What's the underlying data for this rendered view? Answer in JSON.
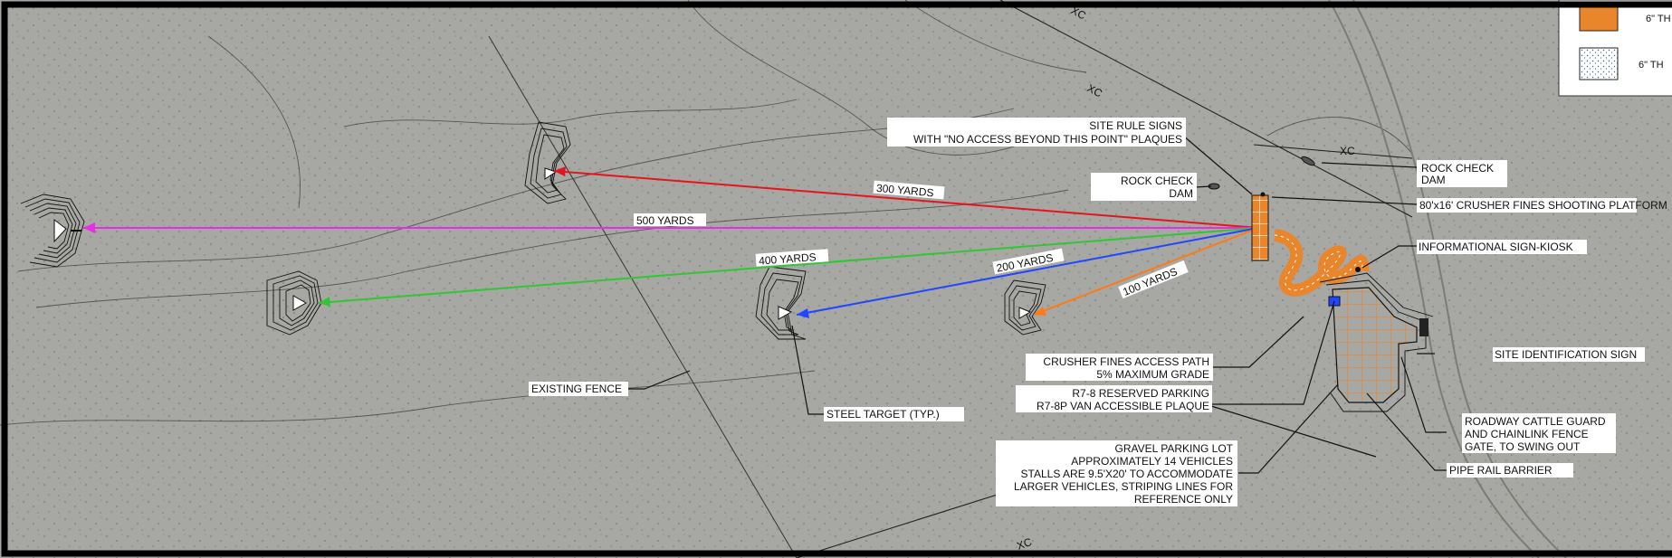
{
  "colors": {
    "ground": "#a7a7a3",
    "line_300": "#e3161d",
    "line_500": "#e62ee6",
    "line_400": "#31c633",
    "line_200": "#2146ff",
    "line_100": "#ff7a14",
    "platform": "#e9862b",
    "frame": "#000000"
  },
  "icons": {
    "target": "berm-contour-symbol",
    "dam": "rock-check-dam-symbol",
    "platform": "crusher-fines-hatch",
    "legend_gravel": "stipple-swatch"
  },
  "fence_marker": "XC",
  "distances": {
    "d300": "300 YARDS",
    "d500": "500 YARDS",
    "d400": "400 YARDS",
    "d200": "200 YARDS",
    "d100": "100 YARDS"
  },
  "callouts": {
    "site_rule_signs": [
      "SITE RULE SIGNS",
      "WITH \"NO ACCESS BEYOND THIS POINT\" PLAQUES"
    ],
    "rock_check_dam_left": [
      "ROCK CHECK",
      "DAM"
    ],
    "rock_check_dam_right": [
      "ROCK CHECK",
      "DAM"
    ],
    "shooting_platform": "80'x16' CRUSHER FINES SHOOTING PLATFORM",
    "info_kiosk": "INFORMATIONAL SIGN-KIOSK",
    "site_id_sign": "SITE IDENTIFICATION SIGN",
    "access_path": [
      "CRUSHER FINES ACCESS PATH",
      "5% MAXIMUM GRADE"
    ],
    "reserved_parking": [
      "R7-8 RESERVED PARKING",
      "R7-8P VAN ACCESSIBLE PLAQUE"
    ],
    "cattle_guard": [
      "ROADWAY CATTLE GUARD",
      "AND CHAINLINK FENCE",
      "GATE, TO SWING OUT"
    ],
    "pipe_rail": "PIPE RAIL BARRIER",
    "gravel_lot": [
      "GRAVEL PARKING LOT",
      "APPROXIMATELY 14 VEHICLES",
      "STALLS ARE 9.5'X20' TO ACCOMMODATE",
      "LARGER VEHICLES, STRIPING LINES FOR",
      "REFERENCE ONLY"
    ],
    "existing_fence": "EXISTING FENCE",
    "steel_target": "STEEL TARGET (TYP.)"
  },
  "legend": {
    "item_1": "6\" TH",
    "item_2": "6\" TH"
  }
}
